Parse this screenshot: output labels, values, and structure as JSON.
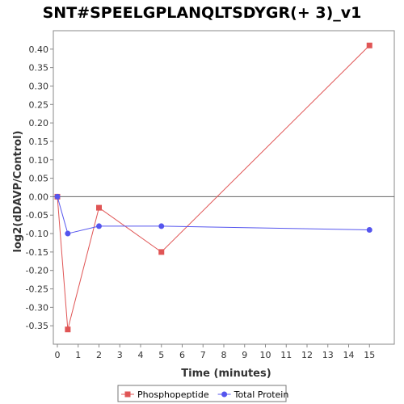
{
  "chart_data": {
    "type": "line",
    "title": "SNT#SPEELGPLANQLTSDYGR(+ 3)_v1",
    "xlabel": "Time (minutes)",
    "ylabel": "log2(dDAVP/Control)",
    "xlim": [
      0,
      16
    ],
    "ylim": [
      -0.4,
      0.45
    ],
    "x_ticks": [
      0,
      1,
      2,
      3,
      4,
      5,
      6,
      7,
      8,
      9,
      10,
      11,
      12,
      13,
      14,
      15
    ],
    "y_ticks": [
      0.4,
      0.35,
      0.3,
      0.25,
      0.2,
      0.15,
      0.1,
      0.05,
      0.0,
      -0.05,
      -0.1,
      -0.15,
      -0.2,
      -0.25,
      -0.3,
      -0.35
    ],
    "y_tick_labels": [
      "0.40",
      "0.35",
      "0.30",
      "0.25",
      "0.20",
      "0.15",
      "0.10",
      "0.05",
      "0.00",
      "-0.05",
      "-0.10",
      "-0.15",
      "-0.20",
      "-0.25",
      "-0.30",
      "-0.35"
    ],
    "zero_line": true,
    "grid": false,
    "legend_position": "bottom",
    "series": [
      {
        "name": "Phosphopeptide",
        "color": "#e05555",
        "marker": "square",
        "x": [
          0,
          0.5,
          2,
          5,
          15
        ],
        "y": [
          0.0,
          -0.36,
          -0.03,
          -0.15,
          0.41
        ]
      },
      {
        "name": "Total Protein",
        "color": "#5555ee",
        "marker": "circle",
        "x": [
          0,
          0.5,
          2,
          5,
          15
        ],
        "y": [
          0.0,
          -0.1,
          -0.08,
          -0.08,
          -0.09
        ]
      }
    ]
  }
}
